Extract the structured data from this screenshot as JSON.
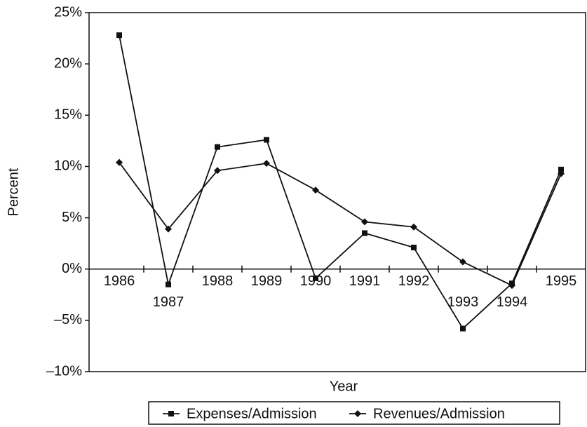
{
  "chart_data": {
    "type": "line",
    "categories": [
      "1986",
      "1987",
      "1988",
      "1989",
      "1990",
      "1991",
      "1992",
      "1993",
      "1994",
      "1995"
    ],
    "series": [
      {
        "name": "Expenses/Admission",
        "color": "#111111",
        "marker": "square",
        "values": [
          22.8,
          -1.5,
          11.9,
          12.6,
          -0.9,
          3.5,
          2.1,
          -5.8,
          -1.4,
          9.7
        ]
      },
      {
        "name": "Revenues/Admission",
        "color": "#111111",
        "marker": "diamond",
        "values": [
          10.4,
          3.9,
          9.6,
          10.3,
          7.7,
          4.6,
          4.1,
          0.7,
          -1.6,
          9.3
        ]
      }
    ],
    "xlabel": "Year",
    "ylabel": "Percent",
    "ylim": [
      -10,
      25
    ],
    "yticks": [
      {
        "value": -10,
        "label": "–10%"
      },
      {
        "value": -5,
        "label": "–5%"
      },
      {
        "value": 0,
        "label": "0%"
      },
      {
        "value": 5,
        "label": "5%"
      },
      {
        "value": 10,
        "label": "10%"
      },
      {
        "value": 15,
        "label": "15%"
      },
      {
        "value": 20,
        "label": "20%"
      },
      {
        "value": 25,
        "label": "25%"
      }
    ],
    "legend": "bottom"
  }
}
